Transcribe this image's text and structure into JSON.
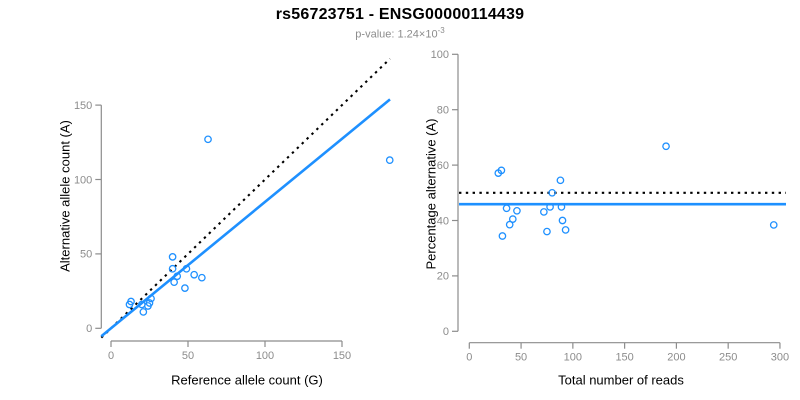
{
  "header": {
    "title": "rs56723751 - ENSG00000114439",
    "subtitle_text": "p-value: 1.24×10",
    "subtitle_sup": "-3"
  },
  "colors": {
    "accent_blue": "#1e90ff",
    "axis_gray": "#8c8c8c",
    "tick_label_gray": "#8c8c8c",
    "text_black": "#000000"
  },
  "chart_data": [
    {
      "type": "scatter",
      "panel": "left",
      "xlabel": "Reference allele count (G)",
      "ylabel": "Alternative allele count (A)",
      "xticks": [
        0,
        50,
        100,
        150
      ],
      "yticks": [
        0,
        50,
        100,
        150
      ],
      "xlim": [
        -8,
        182
      ],
      "ylim": [
        -9,
        182
      ],
      "grid": false,
      "legend": "none",
      "points": [
        [
          12,
          16
        ],
        [
          13,
          18
        ],
        [
          20,
          16
        ],
        [
          21,
          11
        ],
        [
          24,
          15
        ],
        [
          25,
          17
        ],
        [
          26,
          20
        ],
        [
          40,
          40
        ],
        [
          40,
          48
        ],
        [
          41,
          31
        ],
        [
          43,
          35
        ],
        [
          48,
          27
        ],
        [
          49,
          40
        ],
        [
          54,
          36
        ],
        [
          59,
          34
        ],
        [
          63,
          127
        ],
        [
          181,
          113
        ]
      ],
      "lines": [
        {
          "name": "identity-line",
          "style": "dotted",
          "color": "#000000",
          "slope": 1,
          "intercept": 0
        },
        {
          "name": "regression-line",
          "style": "solid",
          "color": "#1e90ff",
          "slope": 0.849,
          "intercept": 0
        }
      ]
    },
    {
      "type": "scatter",
      "panel": "right",
      "xlabel": "Total number of reads",
      "ylabel": "Percentage alternative (A)",
      "xticks": [
        0,
        50,
        100,
        150,
        200,
        250,
        300
      ],
      "yticks": [
        0,
        20,
        40,
        60,
        80,
        100
      ],
      "xlim": [
        -10,
        306
      ],
      "ylim": [
        -4,
        104
      ],
      "grid": false,
      "legend": "none",
      "points": [
        [
          28,
          57.1
        ],
        [
          31,
          58.1
        ],
        [
          32,
          34.4
        ],
        [
          36,
          44.4
        ],
        [
          39,
          38.5
        ],
        [
          42,
          40.5
        ],
        [
          46,
          43.5
        ],
        [
          72,
          43.1
        ],
        [
          75,
          36.0
        ],
        [
          78,
          44.9
        ],
        [
          80,
          50.0
        ],
        [
          88,
          54.5
        ],
        [
          89,
          44.9
        ],
        [
          90,
          40.0
        ],
        [
          93,
          36.6
        ],
        [
          190,
          66.8
        ],
        [
          294,
          38.4
        ]
      ],
      "lines": [
        {
          "name": "null-50-percent-line",
          "style": "dotted",
          "color": "#000000",
          "slope": 0,
          "intercept": 50
        },
        {
          "name": "mean-percentage-line",
          "style": "solid",
          "color": "#1e90ff",
          "slope": 0,
          "intercept": 45.9
        }
      ]
    }
  ]
}
